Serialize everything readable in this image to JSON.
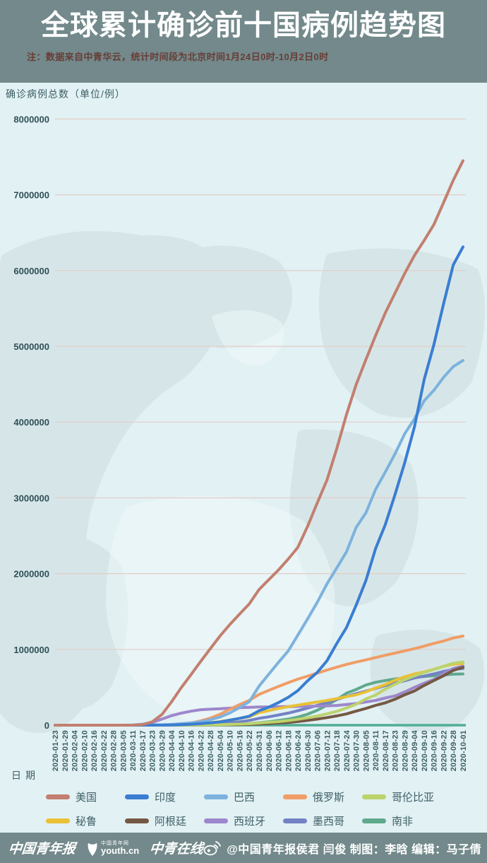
{
  "header": {
    "title": "全球累计确诊前十国病例趋势图",
    "note": "注：数据来自中青华云，统计时间段为北京时间1月24日0时-10月2日0时"
  },
  "axes": {
    "y_unit_label": "确诊病例总数（单位/例）",
    "x_label": "日期"
  },
  "style": {
    "header_bg": "#73898b",
    "chart_bg": "#e2f1f4",
    "map_silhouette": "#cfe0e2",
    "grid_color": "#e2ccc5",
    "baseline_color": "#4fae93",
    "tick_text_color": "#3c5e63",
    "note_color": "#693c36"
  },
  "chart_data": {
    "type": "line",
    "title": "全球累计确诊前十国病例趋势图",
    "xlabel": "日期",
    "ylabel": "确诊病例总数（单位/例）",
    "ylim": [
      0,
      8000000
    ],
    "y_ticks": [
      0,
      1000000,
      2000000,
      3000000,
      4000000,
      5000000,
      6000000,
      7000000,
      8000000
    ],
    "grid": true,
    "legend_position": "bottom",
    "categories": [
      "2020-01-23",
      "2020-01-29",
      "2020-02-04",
      "2020-02-10",
      "2020-02-16",
      "2020-02-22",
      "2020-02-28",
      "2020-03-05",
      "2020-03-11",
      "2020-03-17",
      "2020-03-23",
      "2020-03-29",
      "2020-04-04",
      "2020-04-10",
      "2020-04-16",
      "2020-04-22",
      "2020-04-28",
      "2020-05-04",
      "2020-05-10",
      "2020-05-16",
      "2020-05-22",
      "2020-05-31",
      "2020-06-06",
      "2020-06-12",
      "2020-06-18",
      "2020-06-24",
      "2020-06-30",
      "2020-07-06",
      "2020-07-12",
      "2020-07-18",
      "2020-07-24",
      "2020-07-30",
      "2020-08-05",
      "2020-08-11",
      "2020-08-17",
      "2020-08-23",
      "2020-08-29",
      "2020-09-04",
      "2020-09-10",
      "2020-09-16",
      "2020-09-22",
      "2020-09-28",
      "2020-10-01"
    ],
    "series": [
      {
        "name": "美国",
        "color": "#c27f6f",
        "values": [
          1,
          5,
          11,
          12,
          15,
          35,
          60,
          221,
          1300,
          6400,
          43800,
          140900,
          308800,
          496500,
          667800,
          842600,
          1012000,
          1180000,
          1329000,
          1467000,
          1601000,
          1790000,
          1920000,
          2048000,
          2191000,
          2347000,
          2624000,
          2936000,
          3236000,
          3648000,
          4100000,
          4495000,
          4824000,
          5141000,
          5440000,
          5702000,
          5962000,
          6200000,
          6397000,
          6606000,
          6897000,
          7192000,
          7450000
        ]
      },
      {
        "name": "印度",
        "color": "#3a7dd2",
        "values": [
          0,
          1,
          3,
          3,
          3,
          3,
          3,
          31,
          62,
          142,
          499,
          1024,
          3082,
          7600,
          12759,
          21393,
          31332,
          42836,
          67152,
          90927,
          118447,
          190535,
          236657,
          297535,
          366946,
          456183,
          585493,
          697413,
          849522,
          1077618,
          1287945,
          1583792,
          1908254,
          2329638,
          2647663,
          3044940,
          3463972,
          3936747,
          4562414,
          5020359,
          5562663,
          6074702,
          6312584
        ]
      },
      {
        "name": "巴西",
        "color": "#7db2dd",
        "values": [
          0,
          0,
          0,
          0,
          0,
          0,
          1,
          4,
          52,
          291,
          1891,
          4256,
          10278,
          19638,
          30425,
          45757,
          71886,
          107780,
          162699,
          233142,
          310087,
          514849,
          672846,
          828810,
          978142,
          1188631,
          1402041,
          1623284,
          1864681,
          2074860,
          2287475,
          2610102,
          2801921,
          3109630,
          3340197,
          3582362,
          3846153,
          4041638,
          4282164,
          4419083,
          4591364,
          4732309,
          4813586
        ]
      },
      {
        "name": "俄罗斯",
        "color": "#f09d67",
        "values": [
          0,
          0,
          2,
          2,
          2,
          2,
          2,
          4,
          20,
          114,
          438,
          1534,
          4731,
          11917,
          27938,
          57999,
          93558,
          145268,
          209688,
          272043,
          326448,
          405843,
          458689,
          511423,
          561091,
          606881,
          647849,
          687862,
          727162,
          765437,
          800849,
          832993,
          861423,
          892654,
          922853,
          951897,
          980405,
          1009995,
          1042836,
          1079519,
          1111157,
          1151438,
          1176286
        ]
      },
      {
        "name": "哥伦比亚",
        "color": "#bcd36c",
        "values": [
          0,
          0,
          0,
          0,
          0,
          0,
          0,
          0,
          1,
          65,
          277,
          702,
          1406,
          2473,
          3105,
          4149,
          5597,
          7668,
          10495,
          14216,
          18330,
          29383,
          38027,
          46858,
          60217,
          77313,
          97846,
          120281,
          150445,
          182140,
          226373,
          276055,
          345714,
          397623,
          476660,
          541147,
          599884,
          650055,
          694664,
          736377,
          777537,
          818203,
          835339
        ]
      },
      {
        "name": "秘鲁",
        "color": "#e9c137",
        "values": [
          0,
          0,
          0,
          0,
          0,
          0,
          0,
          0,
          11,
          117,
          395,
          852,
          1746,
          5897,
          12491,
          19250,
          31190,
          47372,
          67307,
          88541,
          111698,
          164476,
          191758,
          220749,
          244388,
          264689,
          285213,
          305703,
          326326,
          349500,
          375961,
          400683,
          439890,
          489680,
          535946,
          594326,
          639435,
          676848,
          702776,
          738020,
          776546,
          805302,
          814829
        ]
      },
      {
        "name": "阿根廷",
        "color": "#755843",
        "values": [
          0,
          0,
          0,
          0,
          0,
          0,
          0,
          1,
          19,
          65,
          266,
          690,
          1451,
          1975,
          2571,
          3144,
          4003,
          4887,
          5776,
          7479,
          9931,
          16851,
          21037,
          28764,
          35552,
          47203,
          62268,
          80447,
          100166,
          122524,
          148027,
          185373,
          220682,
          260911,
          294569,
          342154,
          401239,
          451198,
          524198,
          589012,
          652174,
          723132,
          765002
        ]
      },
      {
        "name": "西班牙",
        "color": "#9d87cc",
        "values": [
          0,
          0,
          1,
          2,
          2,
          2,
          25,
          261,
          2277,
          11826,
          35136,
          80110,
          126168,
          158273,
          184948,
          204178,
          210773,
          217466,
          224350,
          230698,
          235290,
          239479,
          241310,
          243305,
          245268,
          247486,
          249659,
          252130,
          255953,
          260255,
          272421,
          285430,
          305767,
          326612,
          359082,
          386054,
          439286,
          498989,
          554143,
          603167,
          682267,
          748266,
          778607
        ]
      },
      {
        "name": "墨西哥",
        "color": "#7282c4",
        "values": [
          0,
          0,
          0,
          0,
          0,
          0,
          0,
          1,
          8,
          82,
          316,
          848,
          1890,
          3441,
          5847,
          9501,
          15529,
          23471,
          33460,
          45032,
          62527,
          90664,
          110026,
          133974,
          159793,
          191410,
          226089,
          261750,
          299750,
          338913,
          378285,
          416179,
          449961,
          485836,
          522162,
          556216,
          585738,
          623090,
          647507,
          676487,
          710049,
          733717,
          748315
        ]
      },
      {
        "name": "南非",
        "color": "#5fa98d",
        "values": [
          0,
          0,
          0,
          0,
          0,
          0,
          0,
          0,
          13,
          85,
          402,
          1187,
          1585,
          1934,
          2506,
          3465,
          4793,
          6783,
          9420,
          13524,
          19137,
          32683,
          43434,
          61927,
          80412,
          106108,
          144264,
          196750,
          264184,
          337594,
          421996,
          471123,
          529877,
          566109,
          589886,
          609773,
          622551,
          633015,
          642431,
          653444,
          663282,
          672572,
          676084
        ]
      }
    ]
  },
  "footer": {
    "logos": [
      "中国青年报",
      "youth.cn",
      "中青在线"
    ],
    "logo_sub": "中国青年网",
    "credit": "@中国青年报侯君 闫俊 制图：李晗 编辑：马子倩"
  }
}
